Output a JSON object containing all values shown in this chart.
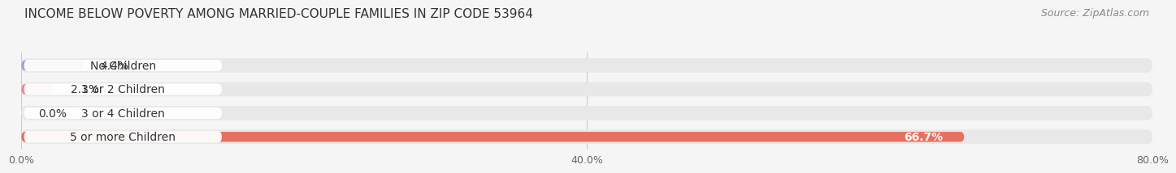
{
  "title": "INCOME BELOW POVERTY AMONG MARRIED-COUPLE FAMILIES IN ZIP CODE 53964",
  "source": "Source: ZipAtlas.com",
  "categories": [
    "No Children",
    "1 or 2 Children",
    "3 or 4 Children",
    "5 or more Children"
  ],
  "values": [
    4.4,
    2.3,
    0.0,
    66.7
  ],
  "bar_colors": [
    "#9b9fd4",
    "#f0819a",
    "#f5c990",
    "#e87060"
  ],
  "bar_bg_color": "#e8e8e8",
  "label_bg_color": "#ffffff",
  "xlim": [
    0,
    80
  ],
  "xticks": [
    0,
    40,
    80
  ],
  "xtick_labels": [
    "0.0%",
    "40.0%",
    "80.0%"
  ],
  "title_fontsize": 11,
  "source_fontsize": 9,
  "label_fontsize": 10,
  "value_fontsize": 10,
  "background_color": "#f5f5f5",
  "grid_color": "#cccccc",
  "text_color": "#333333",
  "source_color": "#888888"
}
